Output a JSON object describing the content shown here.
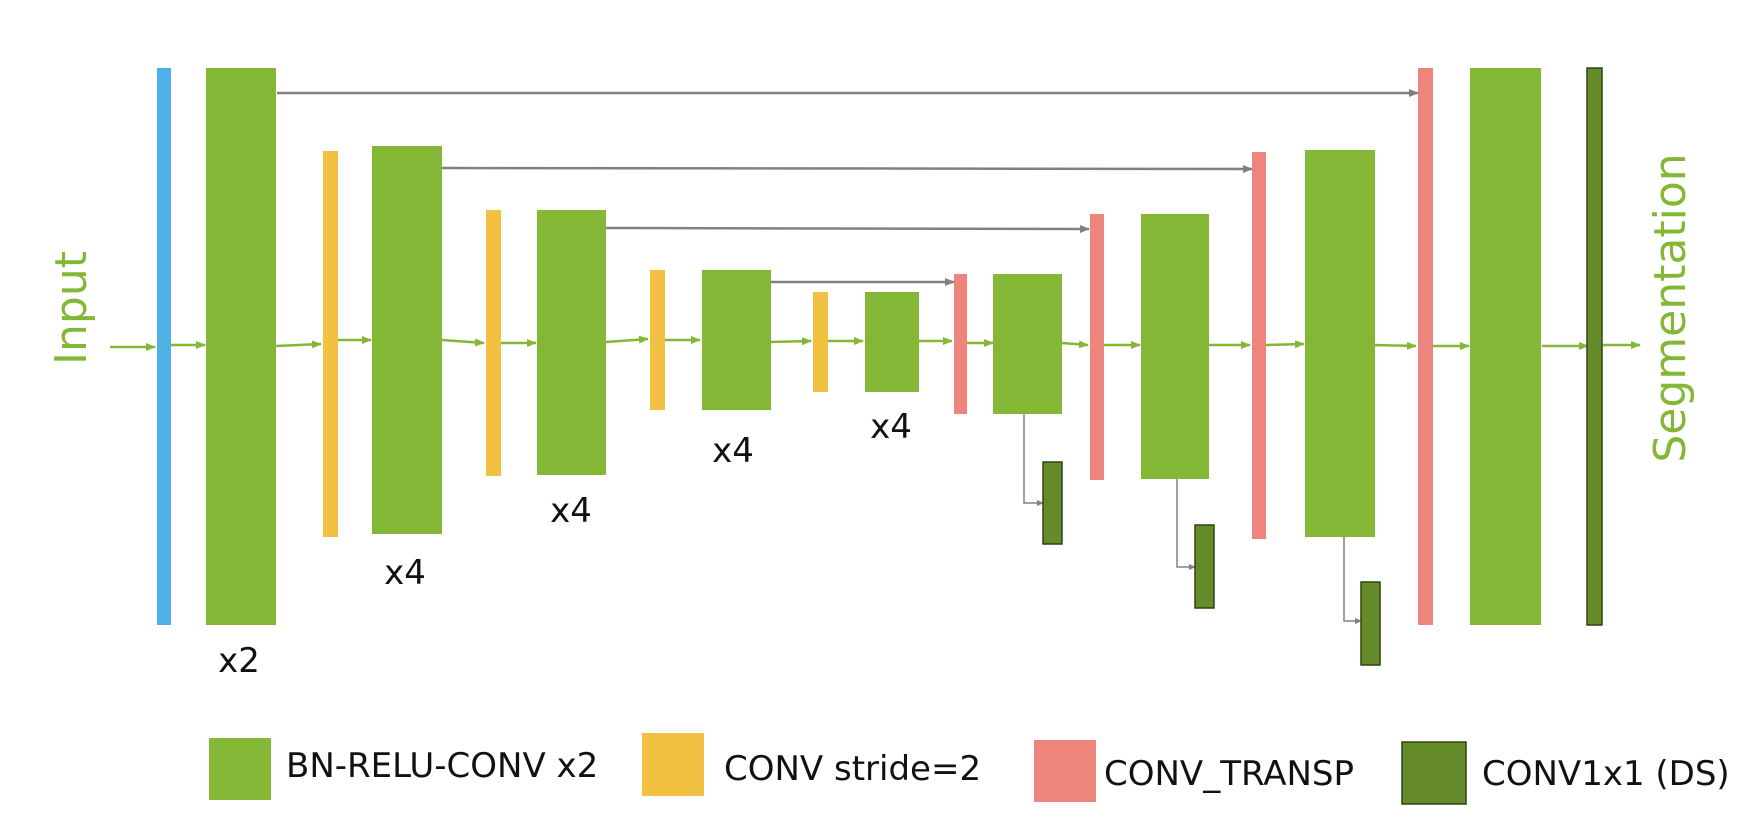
{
  "colors": {
    "bn_relu_conv": "#84b735",
    "conv_stride": "#f2c142",
    "conv_transp": "#ee857d",
    "conv1x1": "#658b2a",
    "input_block": "#4fb0e6",
    "flow_arrow": "#84b735",
    "skip_arrow": "#808080",
    "side_text": "#84b735"
  },
  "labels": {
    "input": "Input",
    "output": "Segmentation"
  },
  "repeats": [
    "x2",
    "x4",
    "x4",
    "x4",
    "x4"
  ],
  "legend": [
    {
      "label": "BN-RELU-CONV x2",
      "type": "bn_relu_conv"
    },
    {
      "label": "CONV stride=2",
      "type": "conv_stride"
    },
    {
      "label": "CONV_TRANSP",
      "type": "conv_transp"
    },
    {
      "label": "CONV1x1 (DS)",
      "type": "conv1x1"
    }
  ]
}
